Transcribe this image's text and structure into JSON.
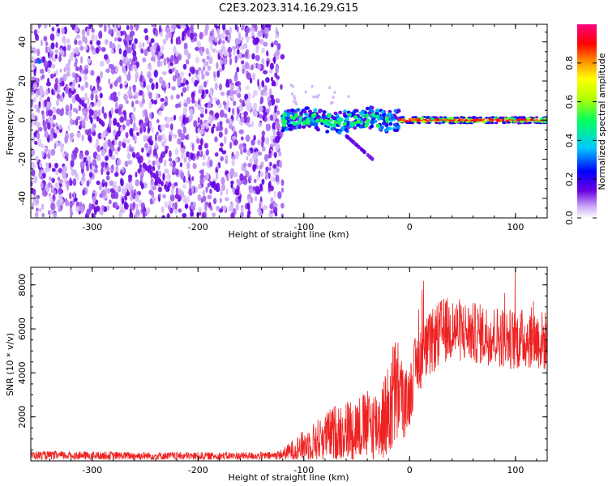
{
  "title": "C2E3.2023.314.16.29.G15",
  "chart_data": [
    {
      "type": "heatmap",
      "xlabel": "Height of straight line (km)",
      "ylabel": "Frequency (Hz)",
      "xlim": [
        -358,
        130
      ],
      "ylim": [
        -50,
        49
      ],
      "xticks": [
        -300,
        -200,
        -100,
        0,
        100
      ],
      "xtick_labels": [
        "-300",
        "-200",
        "-100",
        "0",
        "100"
      ],
      "yticks": [
        -40,
        -20,
        0,
        20,
        40
      ],
      "ytick_labels": [
        "-40",
        "-20",
        "0",
        "20",
        "40"
      ],
      "noise_region_x": [
        -358,
        -120
      ],
      "signal_region_x": [
        -120,
        130
      ],
      "colorbar": {
        "label": "Normalized spectral amplitude",
        "range": [
          0,
          1
        ],
        "ticks": [
          0.0,
          0.2,
          0.4,
          0.6,
          0.8
        ],
        "tick_labels": [
          "0.0",
          "0.2",
          "0.4",
          "0.6",
          "0.8"
        ],
        "colors": [
          "#ffffff",
          "#c9a6f5",
          "#6b00e0",
          "#0000ff",
          "#00c8ff",
          "#00ff60",
          "#b8ff00",
          "#ffff00",
          "#ff8000",
          "#ff0000",
          "#ff0080"
        ]
      }
    },
    {
      "type": "line",
      "xlabel": "Height of straight line (km)",
      "ylabel": "SNR (10 * v/v)",
      "xlim": [
        -358,
        130
      ],
      "ylim": [
        0,
        8800
      ],
      "xticks": [
        -300,
        -200,
        -100,
        0,
        100
      ],
      "xtick_labels": [
        "-300",
        "-200",
        "-100",
        "0",
        "100"
      ],
      "yticks": [
        2000,
        4000,
        6000,
        8000
      ],
      "ytick_labels": [
        "2000",
        "4000",
        "6000",
        "8000"
      ],
      "line_color": "#ee2222",
      "envelope": {
        "x": [
          -358,
          -200,
          -130,
          -120,
          -110,
          -90,
          -70,
          -50,
          -30,
          -20,
          -15,
          -10,
          -5,
          0,
          5,
          10,
          20,
          30,
          40,
          60,
          80,
          100,
          115,
          130
        ],
        "mean": [
          250,
          220,
          230,
          300,
          500,
          900,
          1300,
          1500,
          1700,
          2200,
          3000,
          3200,
          2500,
          3000,
          4200,
          4700,
          5300,
          5900,
          6000,
          5800,
          5700,
          5500,
          5600,
          5400
        ],
        "amp": [
          200,
          180,
          180,
          250,
          500,
          900,
          1300,
          1500,
          1700,
          2200,
          2800,
          2400,
          1500,
          1500,
          1400,
          1500,
          1500,
          1500,
          1500,
          1400,
          1400,
          1400,
          1400,
          1400
        ]
      }
    }
  ]
}
